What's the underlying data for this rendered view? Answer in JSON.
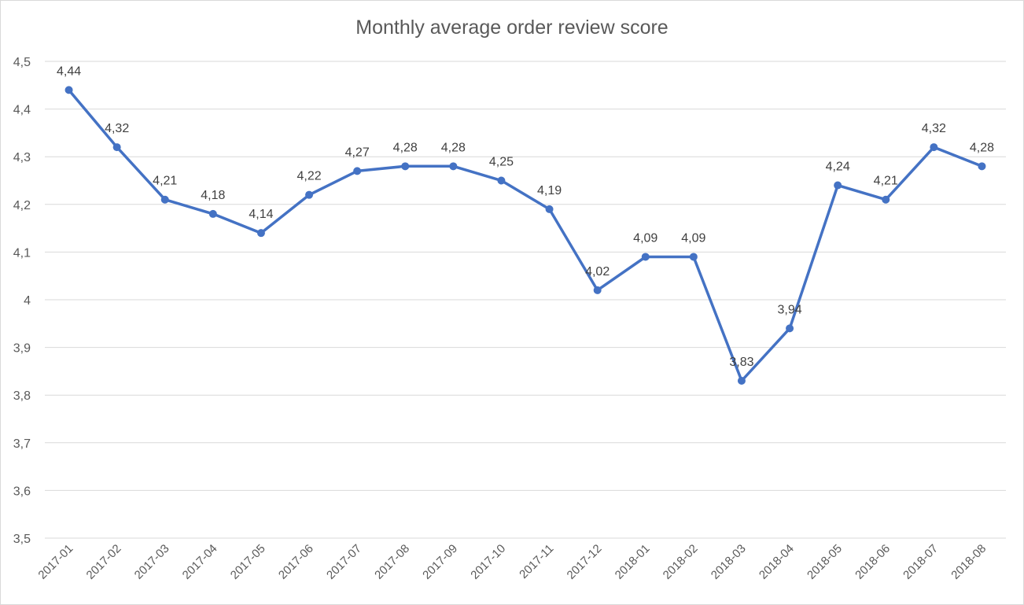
{
  "chart_data": {
    "type": "line",
    "title": "Monthly average order review score",
    "xlabel": "",
    "ylabel": "",
    "categories": [
      "2017-01",
      "2017-02",
      "2017-03",
      "2017-04",
      "2017-05",
      "2017-06",
      "2017-07",
      "2017-08",
      "2017-09",
      "2017-10",
      "2017-11",
      "2017-12",
      "2018-01",
      "2018-02",
      "2018-03",
      "2018-04",
      "2018-05",
      "2018-06",
      "2018-07",
      "2018-08"
    ],
    "series": [
      {
        "values": [
          4.44,
          4.32,
          4.21,
          4.18,
          4.14,
          4.22,
          4.27,
          4.28,
          4.28,
          4.25,
          4.19,
          4.02,
          4.09,
          4.09,
          3.83,
          3.94,
          4.24,
          4.21,
          4.32,
          4.28
        ],
        "data_labels": [
          "4,44",
          "4,32",
          "4,21",
          "4,18",
          "4,14",
          "4,22",
          "4,27",
          "4,28",
          "4,28",
          "4,25",
          "4,19",
          "4,02",
          "4,09",
          "4,09",
          "3,83",
          "3,94",
          "4,24",
          "4,21",
          "4,32",
          "4,28"
        ],
        "color": "#4472c4"
      }
    ],
    "ylim": [
      3.5,
      4.5
    ],
    "y_ticks": [
      3.5,
      3.6,
      3.7,
      3.8,
      3.9,
      4.0,
      4.1,
      4.2,
      4.3,
      4.4,
      4.5
    ],
    "y_tick_labels": [
      "3,5",
      "3,6",
      "3,7",
      "3,8",
      "3,9",
      "4",
      "4,1",
      "4,2",
      "4,3",
      "4,4",
      "4,5"
    ],
    "grid": true,
    "legend": "none",
    "colors": {
      "line": "#4472c4",
      "grid": "#d9d9d9",
      "text": "#595959",
      "label": "#404040"
    }
  }
}
